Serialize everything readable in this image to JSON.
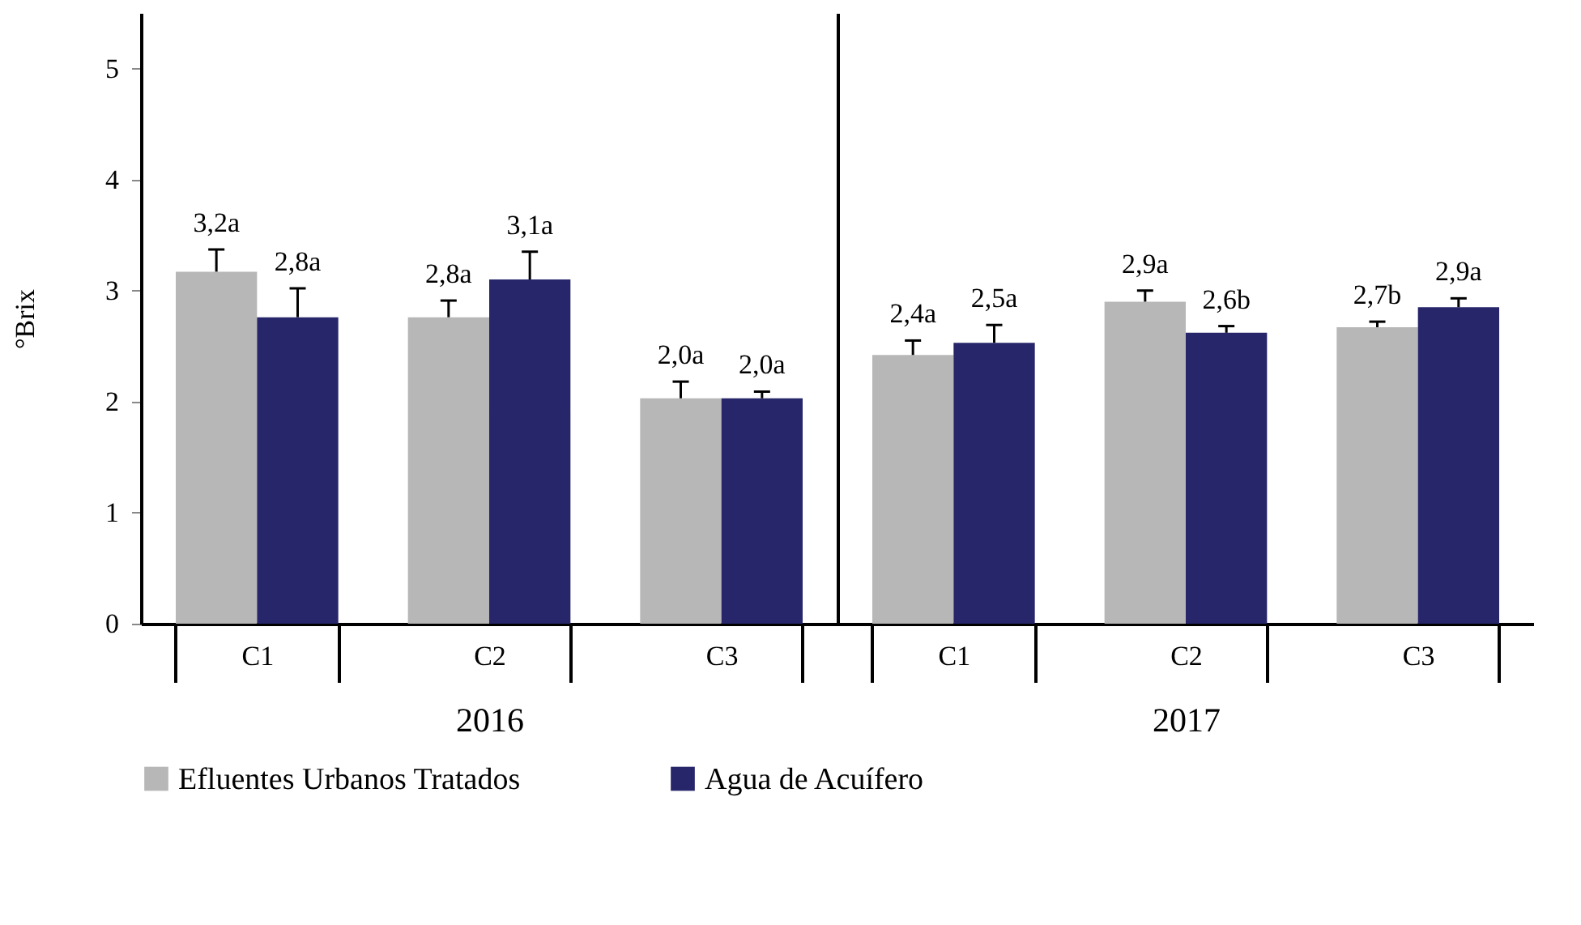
{
  "chart_data": [
    {
      "type": "bar",
      "xlabel": "2016",
      "ylabel": "°Brix",
      "categories": [
        "C1",
        "C2",
        "C3"
      ],
      "ylim": [
        0,
        5.5
      ],
      "yticks": [
        0,
        1,
        2,
        3,
        4,
        5
      ],
      "grid": false,
      "legend": "bottom",
      "series": [
        {
          "name": "Efluentes Urbanos Tratados",
          "color": "#b7b7b7",
          "values": [
            3.17,
            2.76,
            2.03
          ],
          "errors": [
            0.2,
            0.15,
            0.15
          ],
          "value_labels": [
            "3,2a",
            "2,8a",
            "2,0a"
          ]
        },
        {
          "name": "Agua de Acuífero",
          "color": "#27266b",
          "values": [
            2.76,
            3.1,
            2.03
          ],
          "errors": [
            0.26,
            0.25,
            0.06
          ],
          "value_labels": [
            "2,8a",
            "3,1a",
            "2,0a"
          ]
        }
      ]
    },
    {
      "type": "bar",
      "xlabel": "2017",
      "categories": [
        "C1",
        "C2",
        "C3"
      ],
      "ylim": [
        0,
        5.5
      ],
      "yticks": [
        0,
        1,
        2,
        3,
        4,
        5
      ],
      "grid": false,
      "legend": "bottom",
      "tick_labels": "x",
      "series": [
        {
          "name": "Efluentes Urbanos Tratados",
          "color": "#b7b7b7",
          "values": [
            2.42,
            2.9,
            2.67
          ],
          "errors": [
            0.13,
            0.1,
            0.05
          ],
          "value_labels": [
            "2,4a",
            "2,9a",
            "2,7b"
          ]
        },
        {
          "name": "Agua de Acuífero",
          "color": "#27266b",
          "values": [
            2.53,
            2.62,
            2.85
          ],
          "errors": [
            0.16,
            0.06,
            0.08
          ],
          "value_labels": [
            "2,5a",
            "2,6b",
            "2,9a"
          ]
        }
      ]
    }
  ]
}
